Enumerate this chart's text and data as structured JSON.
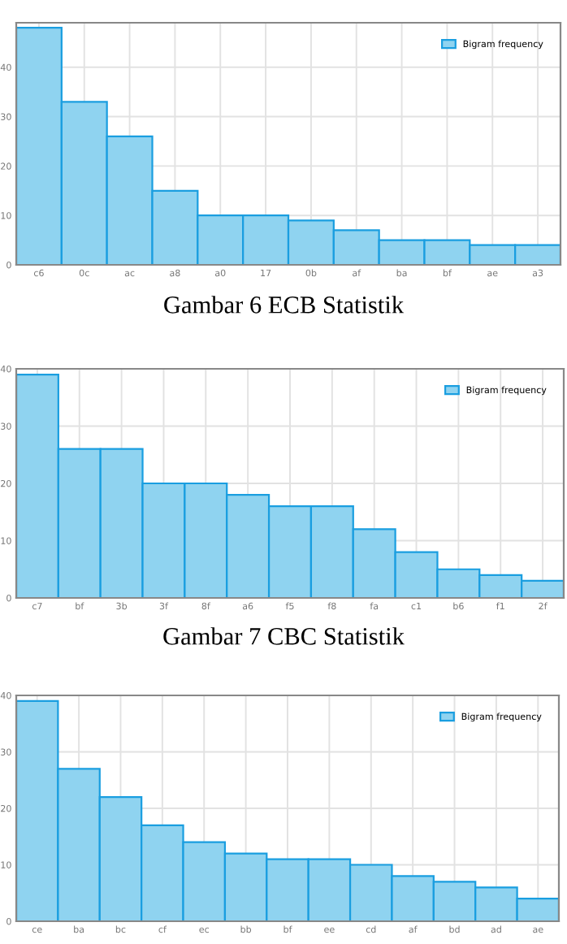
{
  "chart_data": [
    {
      "type": "bar",
      "categories": [
        "c6",
        "0c",
        "ac",
        "a8",
        "a0",
        "17",
        "0b",
        "af",
        "ba",
        "bf",
        "ae",
        "a3"
      ],
      "series": [
        {
          "name": "Bigram frequency",
          "color": "#8fd3f0",
          "values": [
            48,
            33,
            26,
            15,
            10,
            10,
            9,
            7,
            5,
            5,
            4,
            4
          ]
        }
      ],
      "ylim": [
        0,
        49
      ],
      "yticks": [
        0,
        10,
        20,
        30,
        40
      ],
      "grid": true,
      "legend": "top right",
      "annotations": [
        "Gambar 6 ECB Statistik"
      ]
    },
    {
      "type": "bar",
      "categories": [
        "c7",
        "bf",
        "3b",
        "3f",
        "8f",
        "a6",
        "f5",
        "f8",
        "fa",
        "c1",
        "b6",
        "f1",
        "2f"
      ],
      "series": [
        {
          "name": "Bigram frequency",
          "color": "#8fd3f0",
          "values": [
            39,
            26,
            26,
            20,
            20,
            18,
            16,
            16,
            12,
            8,
            5,
            4,
            3
          ]
        }
      ],
      "ylim": [
        0,
        40
      ],
      "yticks": [
        0,
        10,
        20,
        30,
        40
      ],
      "grid": true,
      "legend": "top right",
      "annotations": [
        "Gambar 7 CBC Statistik"
      ]
    },
    {
      "type": "bar",
      "categories": [
        "ce",
        "ba",
        "bc",
        "cf",
        "ec",
        "bb",
        "bf",
        "ee",
        "cd",
        "af",
        "bd",
        "ad",
        "ae"
      ],
      "series": [
        {
          "name": "Bigram frequency",
          "color": "#8fd3f0",
          "values": [
            39,
            27,
            22,
            17,
            14,
            12,
            11,
            11,
            10,
            8,
            7,
            6,
            4
          ]
        }
      ],
      "ylim": [
        0,
        40
      ],
      "yticks": [
        0,
        10,
        20,
        30,
        40
      ],
      "grid": true,
      "legend": "top right"
    }
  ]
}
